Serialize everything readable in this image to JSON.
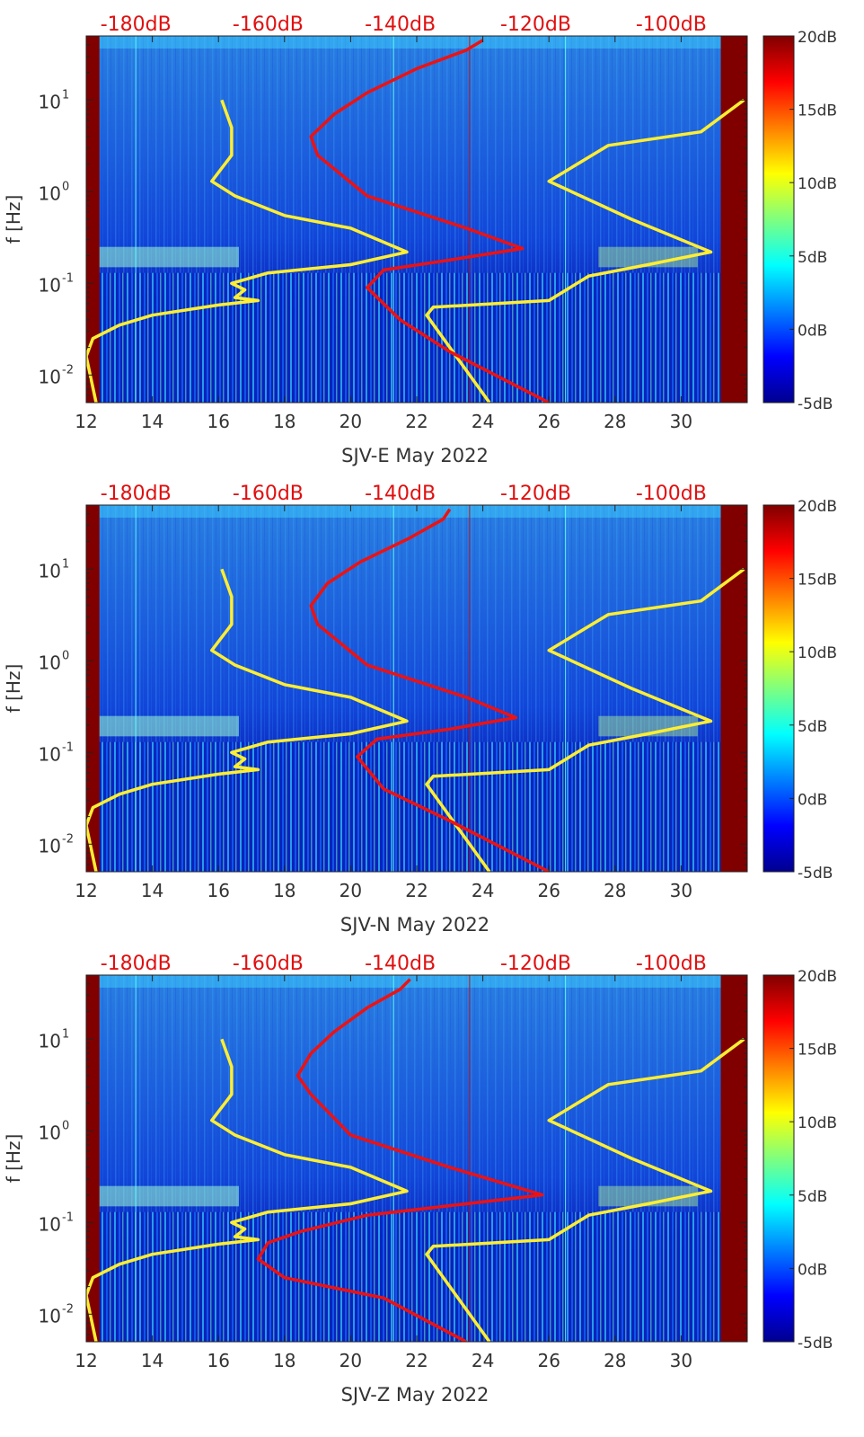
{
  "chart_data": [
    {
      "type": "heatmap",
      "title": "",
      "xlabel": "SJV-E May 2022",
      "ylabel": "f [Hz]",
      "x_ticks": [
        12,
        14,
        16,
        18,
        20,
        22,
        24,
        26,
        28,
        30
      ],
      "x_tick_labels": [
        "12",
        "14",
        "16",
        "18",
        "20",
        "22",
        "24",
        "26",
        "28",
        "30"
      ],
      "y_ticks": [
        0.01,
        0.1,
        1,
        10
      ],
      "y_tick_labels": [
        "10",
        "10",
        "10",
        "10"
      ],
      "y_tick_exponents": [
        "-2",
        "-1",
        "0",
        "1"
      ],
      "xlim": [
        12,
        32
      ],
      "ylim": [
        0.005,
        50
      ],
      "top_labels": [
        "-180dB",
        "-160dB",
        "-140dB",
        "-120dB",
        "-100dB"
      ],
      "top_label_positions": [
        13.5,
        17.5,
        21.5,
        25.6,
        29.7
      ],
      "colorbar": {
        "range": [
          -5,
          20
        ],
        "ticks": [
          20,
          15,
          10,
          5,
          0,
          -5
        ],
        "labels": [
          "20dB",
          "15dB",
          "10dB",
          "5dB",
          "0dB",
          "-5dB"
        ]
      },
      "series": [
        {
          "name": "yellow-low-noise-model",
          "color": "#ffee33",
          "points": [
            [
              12.3,
              0.005
            ],
            [
              12.0,
              0.016
            ],
            [
              12.2,
              0.025
            ],
            [
              13.0,
              0.035
            ],
            [
              14.0,
              0.045
            ],
            [
              16.0,
              0.058
            ],
            [
              17.2,
              0.065
            ],
            [
              16.5,
              0.07
            ],
            [
              16.8,
              0.085
            ],
            [
              16.4,
              0.1
            ],
            [
              17.5,
              0.13
            ],
            [
              20.0,
              0.16
            ],
            [
              21.7,
              0.22
            ],
            [
              20.0,
              0.4
            ],
            [
              18.0,
              0.55
            ],
            [
              16.5,
              0.9
            ],
            [
              15.8,
              1.3
            ],
            [
              16.4,
              2.5
            ],
            [
              16.4,
              5.0
            ],
            [
              16.1,
              10.0
            ]
          ]
        },
        {
          "name": "yellow-high-noise-model",
          "color": "#ffee33",
          "points": [
            [
              24.2,
              0.005
            ],
            [
              22.3,
              0.045
            ],
            [
              22.5,
              0.055
            ],
            [
              26.0,
              0.065
            ],
            [
              27.2,
              0.12
            ],
            [
              29.0,
              0.16
            ],
            [
              30.9,
              0.22
            ],
            [
              28.5,
              0.5
            ],
            [
              26.0,
              1.3
            ],
            [
              27.8,
              3.2
            ],
            [
              30.6,
              4.5
            ],
            [
              31.9,
              10.0
            ]
          ]
        },
        {
          "name": "red-noise-curve",
          "color": "#ee1111",
          "points": [
            [
              26.0,
              0.005
            ],
            [
              23.0,
              0.018
            ],
            [
              21.5,
              0.04
            ],
            [
              20.5,
              0.09
            ],
            [
              21.0,
              0.14
            ],
            [
              23.0,
              0.18
            ],
            [
              25.2,
              0.24
            ],
            [
              23.5,
              0.4
            ],
            [
              20.5,
              0.9
            ],
            [
              19.0,
              2.5
            ],
            [
              18.8,
              4.0
            ],
            [
              19.5,
              7.0
            ],
            [
              20.5,
              12.0
            ],
            [
              22.0,
              22.0
            ],
            [
              23.5,
              35.0
            ],
            [
              24.0,
              45.0
            ]
          ]
        }
      ]
    },
    {
      "type": "heatmap",
      "title": "",
      "xlabel": "SJV-N May 2022",
      "ylabel": "f [Hz]",
      "x_ticks": [
        12,
        14,
        16,
        18,
        20,
        22,
        24,
        26,
        28,
        30
      ],
      "x_tick_labels": [
        "12",
        "14",
        "16",
        "18",
        "20",
        "22",
        "24",
        "26",
        "28",
        "30"
      ],
      "y_ticks": [
        0.01,
        0.1,
        1,
        10
      ],
      "y_tick_labels": [
        "10",
        "10",
        "10",
        "10"
      ],
      "y_tick_exponents": [
        "-2",
        "-1",
        "0",
        "1"
      ],
      "xlim": [
        12,
        32
      ],
      "ylim": [
        0.005,
        50
      ],
      "top_labels": [
        "-180dB",
        "-160dB",
        "-140dB",
        "-120dB",
        "-100dB"
      ],
      "top_label_positions": [
        13.5,
        17.5,
        21.5,
        25.6,
        29.7
      ],
      "colorbar": {
        "range": [
          -5,
          20
        ],
        "ticks": [
          20,
          15,
          10,
          5,
          0,
          -5
        ],
        "labels": [
          "20dB",
          "15dB",
          "10dB",
          "5dB",
          "0dB",
          "-5dB"
        ]
      },
      "series": [
        {
          "name": "yellow-low-noise-model",
          "color": "#ffee33",
          "points": [
            [
              12.3,
              0.005
            ],
            [
              12.0,
              0.016
            ],
            [
              12.2,
              0.025
            ],
            [
              13.0,
              0.035
            ],
            [
              14.0,
              0.045
            ],
            [
              16.0,
              0.058
            ],
            [
              17.2,
              0.065
            ],
            [
              16.5,
              0.07
            ],
            [
              16.8,
              0.085
            ],
            [
              16.4,
              0.1
            ],
            [
              17.5,
              0.13
            ],
            [
              20.0,
              0.16
            ],
            [
              21.7,
              0.22
            ],
            [
              20.0,
              0.4
            ],
            [
              18.0,
              0.55
            ],
            [
              16.5,
              0.9
            ],
            [
              15.8,
              1.3
            ],
            [
              16.4,
              2.5
            ],
            [
              16.4,
              5.0
            ],
            [
              16.1,
              10.0
            ]
          ]
        },
        {
          "name": "yellow-high-noise-model",
          "color": "#ffee33",
          "points": [
            [
              24.2,
              0.005
            ],
            [
              22.3,
              0.045
            ],
            [
              22.5,
              0.055
            ],
            [
              26.0,
              0.065
            ],
            [
              27.2,
              0.12
            ],
            [
              29.0,
              0.16
            ],
            [
              30.9,
              0.22
            ],
            [
              28.5,
              0.5
            ],
            [
              26.0,
              1.3
            ],
            [
              27.8,
              3.2
            ],
            [
              30.6,
              4.5
            ],
            [
              31.9,
              10.0
            ]
          ]
        },
        {
          "name": "red-noise-curve",
          "color": "#ee1111",
          "points": [
            [
              26.0,
              0.005
            ],
            [
              23.0,
              0.018
            ],
            [
              21.0,
              0.04
            ],
            [
              20.2,
              0.09
            ],
            [
              20.8,
              0.14
            ],
            [
              23.0,
              0.18
            ],
            [
              25.0,
              0.24
            ],
            [
              23.5,
              0.4
            ],
            [
              20.5,
              0.9
            ],
            [
              19.0,
              2.5
            ],
            [
              18.8,
              4.0
            ],
            [
              19.3,
              7.0
            ],
            [
              20.3,
              12.0
            ],
            [
              21.8,
              22.0
            ],
            [
              22.8,
              35.0
            ],
            [
              23.0,
              45.0
            ]
          ]
        }
      ]
    },
    {
      "type": "heatmap",
      "title": "",
      "xlabel": "SJV-Z May 2022",
      "ylabel": "f [Hz]",
      "x_ticks": [
        12,
        14,
        16,
        18,
        20,
        22,
        24,
        26,
        28,
        30
      ],
      "x_tick_labels": [
        "12",
        "14",
        "16",
        "18",
        "20",
        "22",
        "24",
        "26",
        "28",
        "30"
      ],
      "y_ticks": [
        0.01,
        0.1,
        1,
        10
      ],
      "y_tick_labels": [
        "10",
        "10",
        "10",
        "10"
      ],
      "y_tick_exponents": [
        "-2",
        "-1",
        "0",
        "1"
      ],
      "xlim": [
        12,
        32
      ],
      "ylim": [
        0.005,
        50
      ],
      "top_labels": [
        "-180dB",
        "-160dB",
        "-140dB",
        "-120dB",
        "-100dB"
      ],
      "top_label_positions": [
        13.5,
        17.5,
        21.5,
        25.6,
        29.7
      ],
      "colorbar": {
        "range": [
          -5,
          20
        ],
        "ticks": [
          20,
          15,
          10,
          5,
          0,
          -5
        ],
        "labels": [
          "20dB",
          "15dB",
          "10dB",
          "5dB",
          "0dB",
          "-5dB"
        ]
      },
      "series": [
        {
          "name": "yellow-low-noise-model",
          "color": "#ffee33",
          "points": [
            [
              12.3,
              0.005
            ],
            [
              12.0,
              0.016
            ],
            [
              12.2,
              0.025
            ],
            [
              13.0,
              0.035
            ],
            [
              14.0,
              0.045
            ],
            [
              16.0,
              0.058
            ],
            [
              17.2,
              0.065
            ],
            [
              16.5,
              0.07
            ],
            [
              16.8,
              0.085
            ],
            [
              16.4,
              0.1
            ],
            [
              17.5,
              0.13
            ],
            [
              20.0,
              0.16
            ],
            [
              21.7,
              0.22
            ],
            [
              20.0,
              0.4
            ],
            [
              18.0,
              0.55
            ],
            [
              16.5,
              0.9
            ],
            [
              15.8,
              1.3
            ],
            [
              16.4,
              2.5
            ],
            [
              16.4,
              5.0
            ],
            [
              16.1,
              10.0
            ]
          ]
        },
        {
          "name": "yellow-high-noise-model",
          "color": "#ffee33",
          "points": [
            [
              24.2,
              0.005
            ],
            [
              22.3,
              0.045
            ],
            [
              22.5,
              0.055
            ],
            [
              26.0,
              0.065
            ],
            [
              27.2,
              0.12
            ],
            [
              29.0,
              0.16
            ],
            [
              30.9,
              0.22
            ],
            [
              28.5,
              0.5
            ],
            [
              26.0,
              1.3
            ],
            [
              27.8,
              3.2
            ],
            [
              30.6,
              4.5
            ],
            [
              31.9,
              10.0
            ]
          ]
        },
        {
          "name": "red-noise-curve",
          "color": "#ee1111",
          "points": [
            [
              23.5,
              0.005
            ],
            [
              21.0,
              0.015
            ],
            [
              18.0,
              0.025
            ],
            [
              17.2,
              0.04
            ],
            [
              17.5,
              0.06
            ],
            [
              18.5,
              0.08
            ],
            [
              20.5,
              0.12
            ],
            [
              23.5,
              0.16
            ],
            [
              25.8,
              0.2
            ],
            [
              23.0,
              0.4
            ],
            [
              20.0,
              0.9
            ],
            [
              18.8,
              2.5
            ],
            [
              18.4,
              4.0
            ],
            [
              18.8,
              7.0
            ],
            [
              19.5,
              12.0
            ],
            [
              20.5,
              22.0
            ],
            [
              21.5,
              35.0
            ],
            [
              21.8,
              45.0
            ]
          ]
        }
      ]
    }
  ]
}
